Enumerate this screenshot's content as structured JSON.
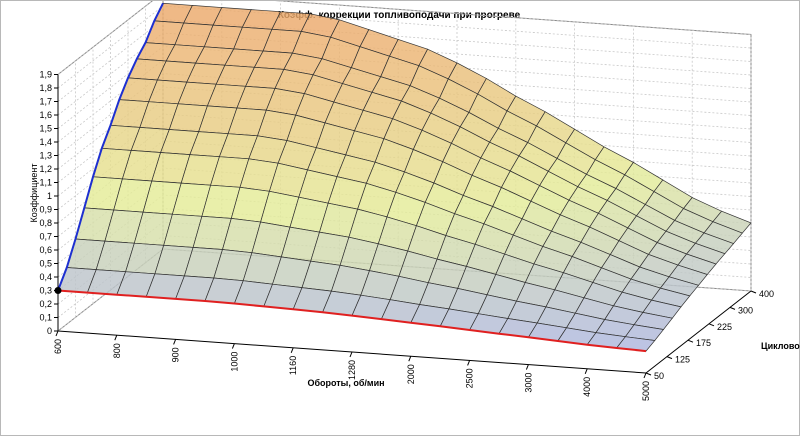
{
  "chart_data": {
    "type": "surface",
    "title": "Коэфф. коррекции топливоподачи при прогреве",
    "xlabel": "Обороты, об/мин",
    "ylabel": "Коэффициент",
    "zlabel": "Цикловое наполн",
    "rpm_ticks": [
      "600",
      "800",
      "900",
      "1000",
      "1160",
      "1280",
      "2000",
      "2500",
      "3000",
      "4000",
      "5000"
    ],
    "fill_ticks": [
      "50",
      "125",
      "175",
      "225",
      "300",
      "400"
    ],
    "y_ticks": [
      "0",
      "0,1",
      "0,2",
      "0,3",
      "0,4",
      "0,5",
      "0,6",
      "0,7",
      "0,8",
      "0,9",
      "1",
      "1,1",
      "1,2",
      "1,3",
      "1,4",
      "1,5",
      "1,6",
      "1,7",
      "1,8",
      "1,9"
    ],
    "ylim": [
      0,
      1.9
    ],
    "fill_levels": [
      50,
      75,
      100,
      125,
      150,
      175,
      200,
      225,
      250,
      275,
      300,
      350,
      400
    ],
    "rpm_values": [
      600,
      700,
      800,
      850,
      900,
      950,
      1000,
      1080,
      1160,
      1220,
      1280,
      1640,
      2000,
      2250,
      2500,
      2750,
      3000,
      3500,
      4000,
      4500,
      5000
    ],
    "row_peak": [
      0.3,
      0.42,
      0.58,
      0.76,
      0.94,
      1.1,
      1.22,
      1.36,
      1.47,
      1.56,
      1.63,
      1.74,
      1.82
    ],
    "col_factor": [
      1.0,
      1.0,
      1.0,
      1.0,
      1.0,
      1.0,
      0.98,
      0.94,
      0.9,
      0.86,
      0.8,
      0.73,
      0.65,
      0.58,
      0.5,
      0.42,
      0.35,
      0.27,
      0.19,
      0.13,
      0.08
    ],
    "colors": {
      "low": "#9fa8f0",
      "mid": "#e4ec98",
      "high": "#eda468",
      "front_edge": "#e02020",
      "left_edge": "#1d2fd0",
      "grid": "#c8c8c8"
    }
  }
}
